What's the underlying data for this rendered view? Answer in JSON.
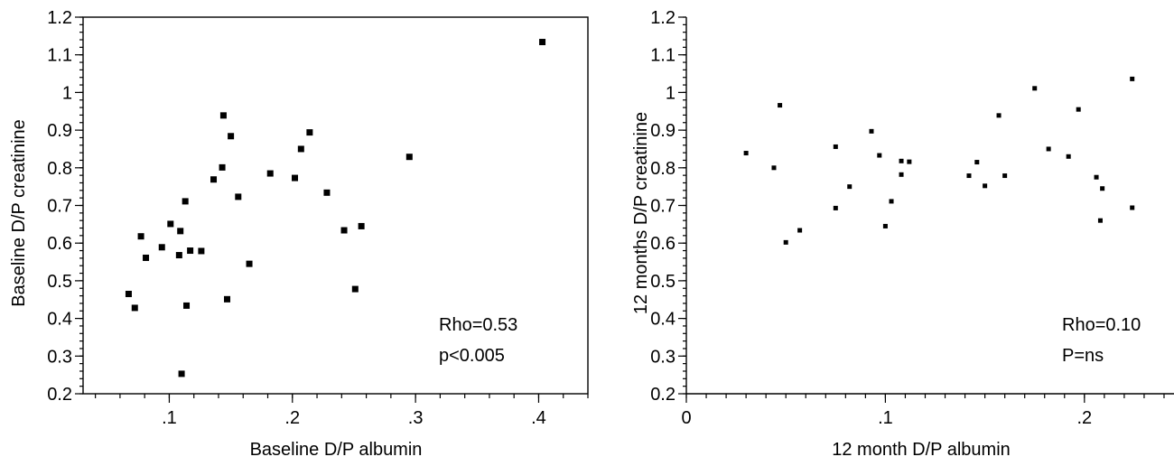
{
  "chart_data": [
    {
      "type": "scatter",
      "xlabel": "Baseline D/P albumin",
      "ylabel": "Baseline D/P creatinine",
      "xlim": [
        0.03,
        0.44
      ],
      "ylim": [
        0.2,
        1.2
      ],
      "x_ticks": [
        0.1,
        0.2,
        0.3,
        0.4
      ],
      "x_tick_labels": [
        ".1",
        ".2",
        ".3",
        ".4"
      ],
      "y_ticks": [
        0.2,
        0.3,
        0.4,
        0.5,
        0.6,
        0.7,
        0.8,
        0.9,
        1.0,
        1.1,
        1.2
      ],
      "y_tick_labels": [
        "0.2",
        "0.3",
        "0.4",
        "0.5",
        "0.6",
        "0.7",
        "0.8",
        "0.9",
        "1",
        "1.1",
        "1.2"
      ],
      "annotations": [
        "Rho=0.53",
        "p<0.005"
      ],
      "marker": "square",
      "points": [
        {
          "x": 0.067,
          "y": 0.465
        },
        {
          "x": 0.072,
          "y": 0.428
        },
        {
          "x": 0.077,
          "y": 0.618
        },
        {
          "x": 0.081,
          "y": 0.561
        },
        {
          "x": 0.094,
          "y": 0.589
        },
        {
          "x": 0.101,
          "y": 0.651
        },
        {
          "x": 0.108,
          "y": 0.568
        },
        {
          "x": 0.109,
          "y": 0.632
        },
        {
          "x": 0.11,
          "y": 0.253
        },
        {
          "x": 0.113,
          "y": 0.711
        },
        {
          "x": 0.114,
          "y": 0.434
        },
        {
          "x": 0.117,
          "y": 0.58
        },
        {
          "x": 0.126,
          "y": 0.579
        },
        {
          "x": 0.136,
          "y": 0.769
        },
        {
          "x": 0.143,
          "y": 0.801
        },
        {
          "x": 0.144,
          "y": 0.939
        },
        {
          "x": 0.147,
          "y": 0.451
        },
        {
          "x": 0.15,
          "y": 0.884
        },
        {
          "x": 0.156,
          "y": 0.723
        },
        {
          "x": 0.165,
          "y": 0.545
        },
        {
          "x": 0.182,
          "y": 0.785
        },
        {
          "x": 0.202,
          "y": 0.773
        },
        {
          "x": 0.207,
          "y": 0.85
        },
        {
          "x": 0.214,
          "y": 0.894
        },
        {
          "x": 0.228,
          "y": 0.734
        },
        {
          "x": 0.242,
          "y": 0.634
        },
        {
          "x": 0.251,
          "y": 0.478
        },
        {
          "x": 0.256,
          "y": 0.645
        },
        {
          "x": 0.295,
          "y": 0.829
        },
        {
          "x": 0.403,
          "y": 1.134
        }
      ]
    },
    {
      "type": "scatter",
      "xlabel": "12 month D/P albumin",
      "ylabel": "12 months D/P creatinine",
      "xlim": [
        0.0,
        0.245
      ],
      "ylim": [
        0.2,
        1.2
      ],
      "x_ticks": [
        0,
        0.1,
        0.2
      ],
      "x_tick_labels": [
        "0",
        ".1",
        ".2"
      ],
      "y_ticks": [
        0.2,
        0.3,
        0.4,
        0.5,
        0.6,
        0.7,
        0.8,
        0.9,
        1.0,
        1.1,
        1.2
      ],
      "y_tick_labels": [
        "0.2",
        "0.3",
        "0.4",
        "0.5",
        "0.6",
        "0.7",
        "0.8",
        "0.9",
        "1",
        "1.1",
        "1.2"
      ],
      "annotations": [
        "Rho=0.10",
        "P=ns"
      ],
      "marker": "square-small",
      "points": [
        {
          "x": 0.03,
          "y": 0.839
        },
        {
          "x": 0.044,
          "y": 0.8
        },
        {
          "x": 0.047,
          "y": 0.966
        },
        {
          "x": 0.05,
          "y": 0.602
        },
        {
          "x": 0.057,
          "y": 0.634
        },
        {
          "x": 0.075,
          "y": 0.856
        },
        {
          "x": 0.075,
          "y": 0.693
        },
        {
          "x": 0.082,
          "y": 0.75
        },
        {
          "x": 0.093,
          "y": 0.897
        },
        {
          "x": 0.097,
          "y": 0.833
        },
        {
          "x": 0.1,
          "y": 0.645
        },
        {
          "x": 0.103,
          "y": 0.711
        },
        {
          "x": 0.108,
          "y": 0.818
        },
        {
          "x": 0.108,
          "y": 0.782
        },
        {
          "x": 0.112,
          "y": 0.816
        },
        {
          "x": 0.142,
          "y": 0.779
        },
        {
          "x": 0.146,
          "y": 0.815
        },
        {
          "x": 0.15,
          "y": 0.752
        },
        {
          "x": 0.157,
          "y": 0.939
        },
        {
          "x": 0.16,
          "y": 0.779
        },
        {
          "x": 0.175,
          "y": 1.011
        },
        {
          "x": 0.182,
          "y": 0.85
        },
        {
          "x": 0.192,
          "y": 0.83
        },
        {
          "x": 0.197,
          "y": 0.955
        },
        {
          "x": 0.206,
          "y": 0.775
        },
        {
          "x": 0.208,
          "y": 0.66
        },
        {
          "x": 0.209,
          "y": 0.745
        },
        {
          "x": 0.224,
          "y": 1.036
        },
        {
          "x": 0.224,
          "y": 0.694
        }
      ]
    }
  ]
}
